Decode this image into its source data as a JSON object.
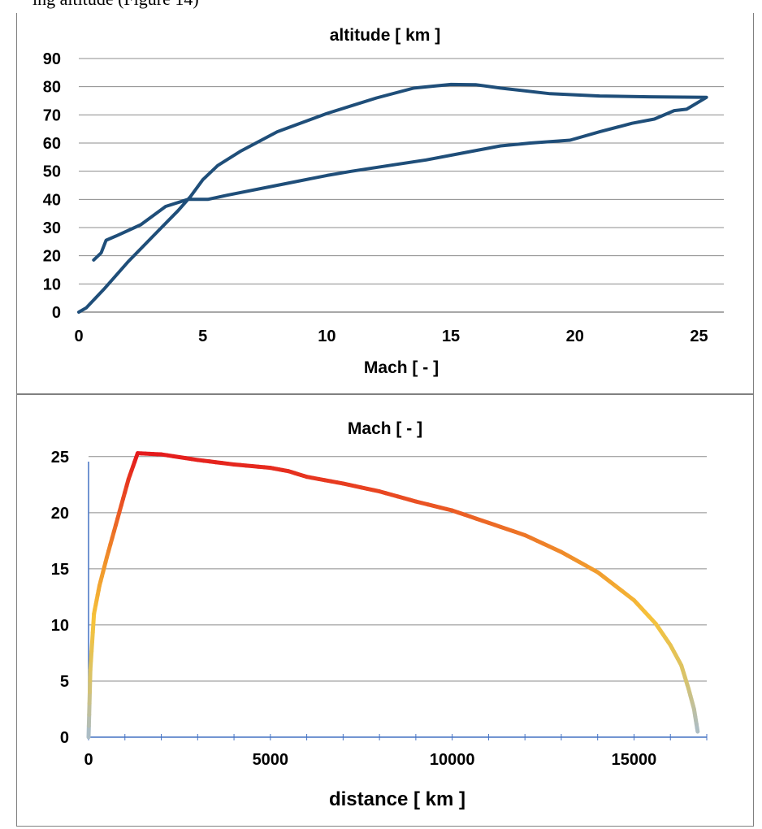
{
  "header_text": "ing altitude (Figure 14)",
  "chart_data": [
    {
      "type": "line",
      "title": "altitude [ km ]",
      "xlabel": "Mach [ - ]",
      "ylabel": "",
      "xlim": [
        0,
        26
      ],
      "ylim": [
        0,
        90
      ],
      "x_ticks": [
        0,
        5,
        10,
        15,
        20,
        25
      ],
      "y_ticks": [
        0,
        10,
        20,
        30,
        40,
        50,
        60,
        70,
        80,
        90
      ],
      "grid": "horizontal",
      "line_color": "#1F4E79",
      "series": [
        {
          "name": "",
          "x": [
            0,
            0.3,
            1,
            2,
            3,
            4,
            4.5,
            5,
            5.6,
            6.5,
            8,
            10,
            12,
            13.5,
            15,
            16,
            17,
            19,
            21,
            23,
            25.3,
            24.5,
            24,
            23.2,
            22.3,
            21,
            19.8,
            18.2,
            17,
            15.5,
            14,
            12.5,
            11,
            10,
            8,
            6,
            5.2,
            4.4,
            3.5,
            2.5,
            1.5,
            1.1,
            0.9,
            0.6
          ],
          "y": [
            0,
            1.5,
            8,
            18,
            27,
            36,
            41,
            47,
            52,
            57,
            64,
            70.5,
            76,
            79.5,
            80.8,
            80.7,
            79.5,
            77.5,
            76.7,
            76.4,
            76.2,
            72,
            71.5,
            68.5,
            67,
            64,
            61,
            60,
            59,
            56.5,
            54,
            52,
            50,
            48.5,
            45,
            41.5,
            40,
            40,
            37.5,
            31,
            27,
            25.5,
            21,
            18.5
          ]
        }
      ]
    },
    {
      "type": "line",
      "title": "Mach [ - ]",
      "xlabel": "distance [ km ]",
      "ylabel": "",
      "xlim": [
        0,
        17000
      ],
      "ylim": [
        0,
        26
      ],
      "x_ticks": [
        0,
        5000,
        10000,
        15000
      ],
      "y_ticks": [
        0,
        5,
        10,
        15,
        20,
        25
      ],
      "grid": "horizontal",
      "color_scale": "#E41A1C (high Mach) to #F6C23A to #A7BCCF (low Mach)",
      "series": [
        {
          "name": "",
          "x": [
            0,
            50,
            150,
            300,
            500,
            800,
            1100,
            1350,
            2000,
            3000,
            4000,
            5000,
            5500,
            6000,
            7000,
            8000,
            9000,
            10000,
            11000,
            12000,
            13000,
            14000,
            15000,
            15600,
            16000,
            16300,
            16500,
            16650,
            16750
          ],
          "y": [
            0,
            6,
            11,
            13.5,
            16,
            19.5,
            23,
            25.3,
            25.2,
            24.7,
            24.3,
            24,
            23.7,
            23.2,
            22.6,
            21.9,
            21,
            20.2,
            19.1,
            18,
            16.5,
            14.7,
            12.2,
            10.1,
            8.2,
            6.4,
            4.3,
            2.5,
            0.5
          ]
        }
      ]
    }
  ]
}
